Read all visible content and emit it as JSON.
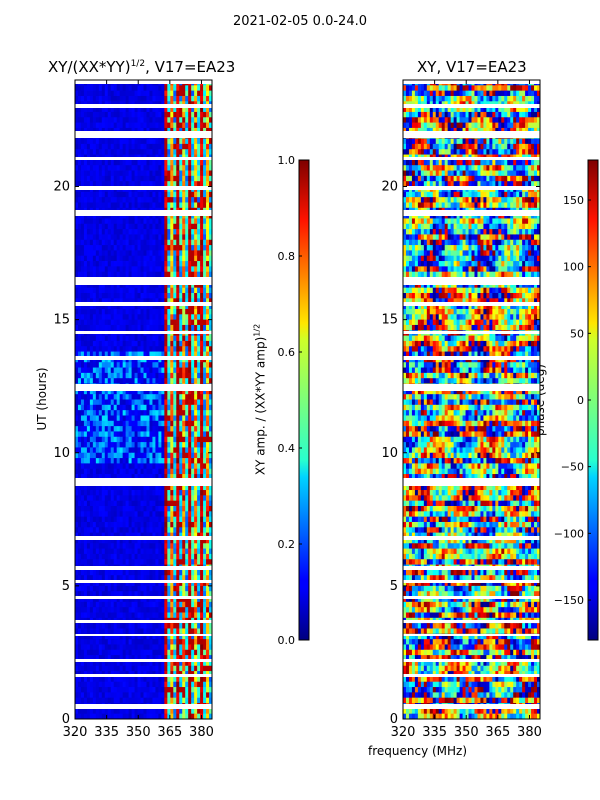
{
  "figure_title": "2021-02-05 0.0-24.0",
  "chart_data": [
    {
      "type": "heatmap",
      "title": "XY/(XX*YY)^(1/2), V17=EA23",
      "title_main": "XY/(XX*YY)",
      "title_sup": "1/2",
      "title_tail": ", V17=EA23",
      "xlabel": "",
      "ylabel": "UT (hours)",
      "xlim": [
        320,
        385
      ],
      "ylim": [
        0,
        24
      ],
      "x_ticks": [
        320,
        335,
        350,
        365,
        380
      ],
      "y_ticks": [
        0,
        5,
        10,
        15,
        20
      ],
      "colorbar": {
        "label": "XY amp. / (XX*YY amp)^(1/2)",
        "label_main": "XY amp. / (XX*YY amp)",
        "label_sup": "1/2",
        "range": [
          0.0,
          1.0
        ],
        "ticks": [
          "0.0",
          "0.2",
          "0.4",
          "0.6",
          "0.8",
          "1.0"
        ],
        "tick_values": [
          0.0,
          0.2,
          0.4,
          0.6,
          0.8,
          1.0
        ],
        "colormap": "jet"
      }
    },
    {
      "type": "heatmap",
      "title": "XY, V17=EA23",
      "xlabel": "frequency (MHz)",
      "ylabel": "",
      "xlim": [
        320,
        385
      ],
      "ylim": [
        0,
        24
      ],
      "x_ticks": [
        320,
        335,
        350,
        365,
        380
      ],
      "y_ticks": [
        0,
        5,
        10,
        15,
        20
      ],
      "colorbar": {
        "label": "phase (deg)",
        "range": [
          -180,
          180
        ],
        "ticks": [
          "−150",
          "−100",
          "−50",
          "0",
          "50",
          "100",
          "150"
        ],
        "tick_values": [
          -150,
          -100,
          -50,
          0,
          50,
          100,
          150
        ],
        "colormap": "jet"
      }
    }
  ]
}
